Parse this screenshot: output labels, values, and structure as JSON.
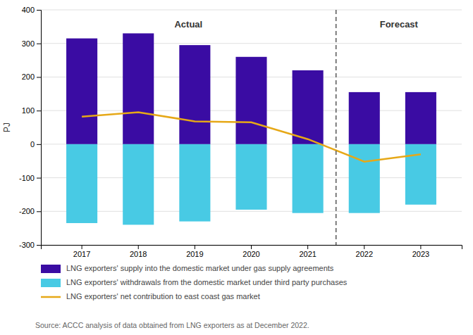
{
  "chart_data": {
    "type": "bar",
    "categories": [
      "2017",
      "2018",
      "2019",
      "2020",
      "2021",
      "2022",
      "2023"
    ],
    "series": [
      {
        "name": "LNG exporters' supply into the domestic market under gas supply agreements",
        "type": "bar",
        "color": "#3a0ca3",
        "values": [
          315,
          330,
          295,
          260,
          220,
          155,
          155
        ]
      },
      {
        "name": "LNG exporters' withdrawals from the domestic market under third party purchases",
        "type": "bar",
        "color": "#48cae4",
        "values": [
          -235,
          -240,
          -230,
          -195,
          -205,
          -205,
          -180
        ]
      },
      {
        "name": "LNG exporters' net contribution to east coast gas market",
        "type": "line",
        "color": "#e6a817",
        "values": [
          82,
          95,
          68,
          65,
          15,
          -52,
          -30
        ]
      }
    ],
    "y_label": "PJ",
    "annotations": [
      "Actual",
      "Forecast"
    ],
    "source": "Source: ACCC analysis of data obtained from LNG exporters as at December 2022.",
    "ylim": [
      -300,
      400
    ],
    "yticks": [
      -300,
      -200,
      -100,
      0,
      100,
      200,
      300,
      400
    ],
    "grid": true,
    "legend": "bottom"
  }
}
